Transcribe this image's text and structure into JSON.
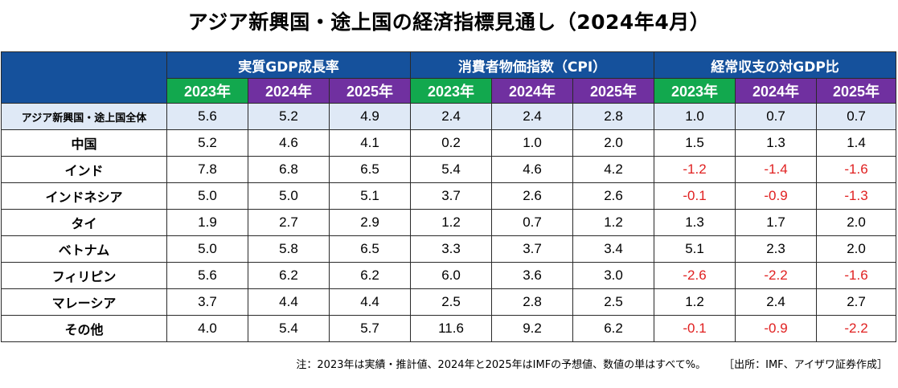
{
  "title": "アジア新興国・途上国の経済指標見通し（2024年4月）",
  "groups": [
    "実質GDP成長率",
    "消費者物価指数（CPI）",
    "経常収支の対GDP比"
  ],
  "years": [
    "2023年",
    "2024年",
    "2025年"
  ],
  "year_colors": [
    "#12a84e",
    "#7030a0",
    "#7030a0"
  ],
  "header_color": "#15519c",
  "negative_color": "#e02020",
  "rows": [
    {
      "label": "アジア新興国・途上国全体",
      "values": [
        "5.6",
        "5.2",
        "4.9",
        "2.4",
        "2.4",
        "2.8",
        "1.0",
        "0.7",
        "0.7"
      ]
    },
    {
      "label": "中国",
      "values": [
        "5.2",
        "4.6",
        "4.1",
        "0.2",
        "1.0",
        "2.0",
        "1.5",
        "1.3",
        "1.4"
      ]
    },
    {
      "label": "インド",
      "values": [
        "7.8",
        "6.8",
        "6.5",
        "5.4",
        "4.6",
        "4.2",
        "-1.2",
        "-1.4",
        "-1.6"
      ]
    },
    {
      "label": "インドネシア",
      "values": [
        "5.0",
        "5.0",
        "5.1",
        "3.7",
        "2.6",
        "2.6",
        "-0.1",
        "-0.9",
        "-1.3"
      ]
    },
    {
      "label": "タイ",
      "values": [
        "1.9",
        "2.7",
        "2.9",
        "1.2",
        "0.7",
        "1.2",
        "1.3",
        "1.7",
        "2.0"
      ]
    },
    {
      "label": "ベトナム",
      "values": [
        "5.0",
        "5.8",
        "6.5",
        "3.3",
        "3.7",
        "3.4",
        "5.1",
        "2.3",
        "2.0"
      ]
    },
    {
      "label": "フィリピン",
      "values": [
        "5.6",
        "6.2",
        "6.2",
        "6.0",
        "3.6",
        "3.0",
        "-2.6",
        "-2.2",
        "-1.6"
      ]
    },
    {
      "label": "マレーシア",
      "values": [
        "3.7",
        "4.4",
        "4.4",
        "2.5",
        "2.8",
        "2.5",
        "1.2",
        "2.4",
        "2.7"
      ]
    },
    {
      "label": "その他",
      "values": [
        "4.0",
        "5.4",
        "5.7",
        "11.6",
        "9.2",
        "6.2",
        "-0.1",
        "-0.9",
        "-2.2"
      ]
    }
  ],
  "footnote": "注：2023年は実績・推計値、2024年と2025年はIMFの予想値、数値の単はすべて%。",
  "source": "［出所：IMF、アイザワ証券作成］"
}
